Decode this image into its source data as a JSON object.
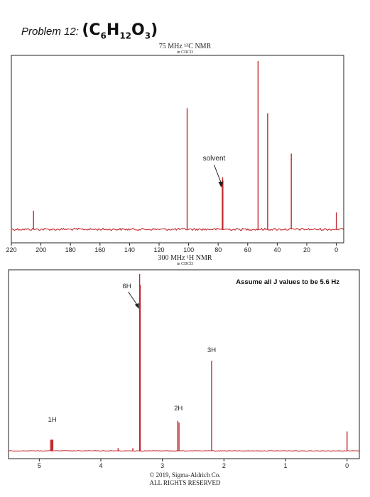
{
  "title": {
    "problem_label": "Problem 12:",
    "formula_parts": [
      "(C",
      "6",
      "H",
      "12",
      "O",
      "3",
      ")"
    ]
  },
  "c13_caption": {
    "line1": "75 MHz ¹³C NMR",
    "line2": "in CDCl3"
  },
  "h1_caption": {
    "line1": "300 MHz ¹H NMR",
    "line2": "in CDCl3"
  },
  "footer": {
    "line1": "© 2019, Sigma-Aldrich Co.",
    "line2": "ALL RIGHTS RESERVED"
  },
  "colors": {
    "spectrum": "#c0282d",
    "frame": "#222222"
  },
  "chart_data": [
    {
      "type": "line",
      "name": "13C NMR spectrum",
      "x_reversed": true,
      "xlim": [
        220,
        -5
      ],
      "x_ticks": [
        220,
        200,
        180,
        160,
        140,
        120,
        100,
        80,
        60,
        40,
        20,
        0
      ],
      "peaks": [
        {
          "x": 205,
          "height": 0.11
        },
        {
          "x": 101,
          "height": 0.72
        },
        {
          "x": 77.2,
          "height": 0.29
        },
        {
          "x": 77.0,
          "height": 0.31
        },
        {
          "x": 76.8,
          "height": 0.29
        },
        {
          "x": 53,
          "height": 1.0
        },
        {
          "x": 46.5,
          "height": 0.69
        },
        {
          "x": 30.5,
          "height": 0.45
        },
        {
          "x": 0,
          "height": 0.1
        }
      ],
      "annotations": [
        {
          "text": "solvent",
          "x": 77
        }
      ]
    },
    {
      "type": "line",
      "name": "1H NMR spectrum",
      "x_reversed": true,
      "xlim": [
        5.5,
        -0.2
      ],
      "x_ticks": [
        5,
        4,
        3,
        2,
        1,
        0
      ],
      "note": "Assume all J values to be 5.6 Hz",
      "peaks": [
        {
          "x": 4.82,
          "height": 0.063
        },
        {
          "x": 4.8,
          "height": 0.063
        },
        {
          "x": 4.79,
          "height": 0.063
        },
        {
          "x": 4.78,
          "height": 0.063
        },
        {
          "x": 3.72,
          "height": 0.015
        },
        {
          "x": 3.48,
          "height": 0.015
        },
        {
          "x": 3.37,
          "height": 1.0
        },
        {
          "x": 3.36,
          "height": 0.94
        },
        {
          "x": 2.75,
          "height": 0.17
        },
        {
          "x": 2.73,
          "height": 0.16
        },
        {
          "x": 2.2,
          "height": 0.51
        },
        {
          "x": 0.0,
          "height": 0.11
        }
      ],
      "integrations": [
        {
          "text": "1H",
          "x": 4.79
        },
        {
          "text": "6H",
          "x": 3.37
        },
        {
          "text": "2H",
          "x": 2.74
        },
        {
          "text": "3H",
          "x": 2.2
        }
      ]
    }
  ]
}
